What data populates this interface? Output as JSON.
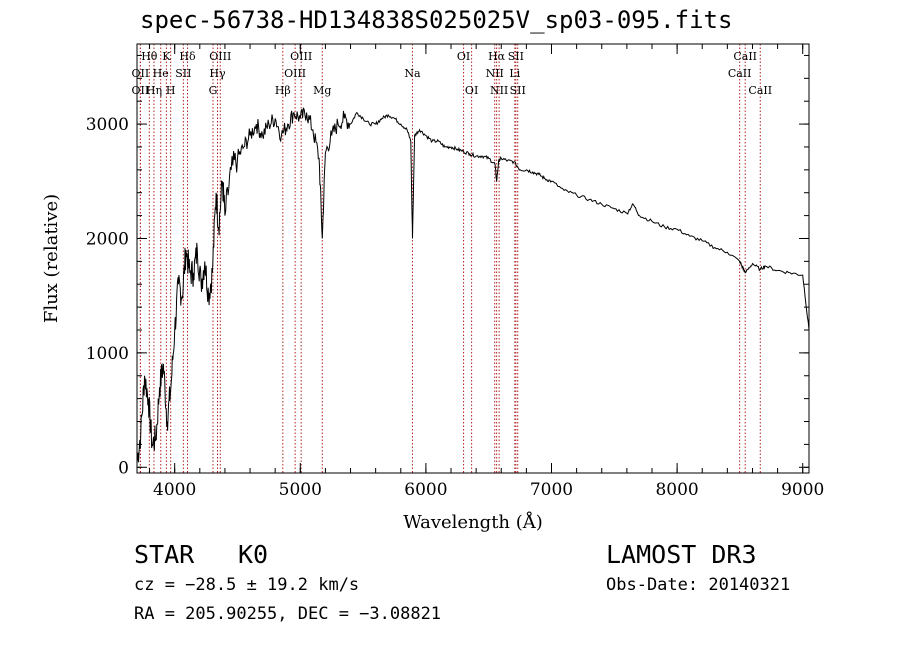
{
  "chart_data": {
    "type": "line",
    "title": "spec-56738-HD134838S025025V_sp03-095.fits",
    "xlabel": "Wavelength (Å)",
    "ylabel": "Flux (relative)",
    "xlim": [
      3700,
      9050
    ],
    "ylim": [
      -50,
      3700
    ],
    "xticks": [
      4000,
      5000,
      6000,
      7000,
      8000,
      9000
    ],
    "yticks": [
      0,
      1000,
      2000,
      3000
    ],
    "line_color": "#000000",
    "marker_color": "#b22222",
    "spectrum": {
      "x": [
        3700,
        3730,
        3760,
        3790,
        3820,
        3850,
        3880,
        3910,
        3940,
        3970,
        4000,
        4030,
        4060,
        4090,
        4120,
        4150,
        4180,
        4210,
        4240,
        4270,
        4300,
        4330,
        4350,
        4380,
        4400,
        4450,
        4500,
        4550,
        4600,
        4650,
        4700,
        4750,
        4800,
        4850,
        4900,
        4950,
        5000,
        5050,
        5100,
        5150,
        5175,
        5200,
        5250,
        5300,
        5350,
        5400,
        5450,
        5500,
        5550,
        5600,
        5650,
        5700,
        5750,
        5800,
        5850,
        5880,
        5893,
        5910,
        5950,
        6000,
        6050,
        6100,
        6150,
        6200,
        6250,
        6300,
        6350,
        6400,
        6450,
        6500,
        6550,
        6563,
        6580,
        6600,
        6650,
        6700,
        6750,
        6800,
        6850,
        6900,
        6950,
        7000,
        7100,
        7200,
        7300,
        7400,
        7500,
        7600,
        7650,
        7700,
        7800,
        7900,
        8000,
        8100,
        8200,
        8300,
        8400,
        8498,
        8520,
        8542,
        8600,
        8662,
        8700,
        8800,
        8900,
        9000,
        9050
      ],
      "y": [
        50,
        300,
        800,
        600,
        200,
        250,
        700,
        900,
        400,
        700,
        1200,
        1600,
        1500,
        1900,
        1700,
        1700,
        1900,
        1600,
        1800,
        1500,
        1700,
        2400,
        2100,
        2500,
        2200,
        2600,
        2700,
        2800,
        2900,
        3000,
        2900,
        3000,
        3050,
        2900,
        3000,
        3100,
        3050,
        3100,
        2950,
        2700,
        2000,
        2750,
        2900,
        3000,
        3050,
        3000,
        3100,
        3050,
        3000,
        3000,
        3050,
        3080,
        3050,
        3000,
        2950,
        2850,
        2000,
        2900,
        2950,
        2900,
        2850,
        2850,
        2800,
        2800,
        2780,
        2760,
        2740,
        2720,
        2720,
        2700,
        2650,
        2500,
        2680,
        2700,
        2680,
        2670,
        2600,
        2600,
        2580,
        2560,
        2520,
        2500,
        2420,
        2380,
        2340,
        2300,
        2260,
        2220,
        2300,
        2200,
        2150,
        2100,
        2080,
        2020,
        1980,
        1920,
        1880,
        1800,
        1750,
        1700,
        1780,
        1730,
        1760,
        1720,
        1700,
        1680,
        1200
      ]
    },
    "lines": [
      {
        "label": "Hθ",
        "x": 3798,
        "row": 0
      },
      {
        "label": "OII",
        "x": 3727,
        "row": 1
      },
      {
        "label": "OII",
        "x": 3727,
        "row": 2
      },
      {
        "label": "He",
        "x": 3889,
        "row": 1
      },
      {
        "label": "Hη",
        "x": 3835,
        "row": 2
      },
      {
        "label": "K",
        "x": 3934,
        "row": 0
      },
      {
        "label": "H",
        "x": 3968,
        "row": 2
      },
      {
        "label": "SII",
        "x": 4069,
        "row": 1
      },
      {
        "label": "Hδ",
        "x": 4102,
        "row": 0
      },
      {
        "label": "OIII",
        "x": 4363,
        "row": 0
      },
      {
        "label": "Hγ",
        "x": 4341,
        "row": 1
      },
      {
        "label": "G",
        "x": 4305,
        "row": 2
      },
      {
        "label": "Hβ",
        "x": 4861,
        "row": 2
      },
      {
        "label": "OIII",
        "x": 5007,
        "row": 0
      },
      {
        "label": "OIII",
        "x": 4959,
        "row": 1
      },
      {
        "label": "Mg",
        "x": 5175,
        "row": 2
      },
      {
        "label": "Na",
        "x": 5893,
        "row": 1
      },
      {
        "label": "OI",
        "x": 6300,
        "row": 0
      },
      {
        "label": "OI",
        "x": 6364,
        "row": 2
      },
      {
        "label": "Hα",
        "x": 6563,
        "row": 0
      },
      {
        "label": "NII",
        "x": 6548,
        "row": 1
      },
      {
        "label": "NII",
        "x": 6583,
        "row": 2
      },
      {
        "label": "SII",
        "x": 6716,
        "row": 0
      },
      {
        "label": "Li",
        "x": 6708,
        "row": 1
      },
      {
        "label": "SII",
        "x": 6731,
        "row": 2
      },
      {
        "label": "CaII",
        "x": 8542,
        "row": 0
      },
      {
        "label": "CaII",
        "x": 8498,
        "row": 1
      },
      {
        "label": "CaII",
        "x": 8662,
        "row": 2
      }
    ]
  },
  "info": {
    "class": "STAR",
    "subclass": "K0",
    "survey": "LAMOST DR3",
    "cz": "cz = −28.5 ± 19.2 km/s",
    "obs_date": "Obs-Date: 20140321",
    "radec": "RA = 205.90255, DEC =  −3.08821"
  }
}
